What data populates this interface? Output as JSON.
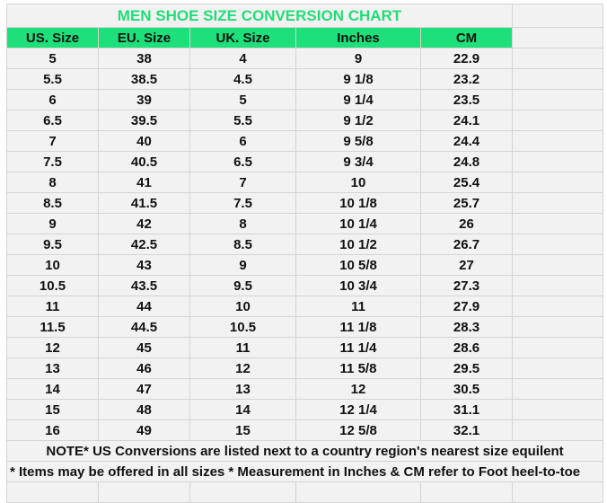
{
  "title": "MEN SHOE SIZE CONVERSION CHART",
  "colors": {
    "accent": "#1ee07a",
    "title": "#22dd77"
  },
  "headers": [
    "US. Size",
    "EU. Size",
    "UK. Size",
    "Inches",
    "CM"
  ],
  "rows": [
    [
      "5",
      "38",
      "4",
      "9",
      "22.9"
    ],
    [
      "5.5",
      "38.5",
      "4.5",
      "9 1/8",
      "23.2"
    ],
    [
      "6",
      "39",
      "5",
      "9 1/4",
      "23.5"
    ],
    [
      "6.5",
      "39.5",
      "5.5",
      "9 1/2",
      "24.1"
    ],
    [
      "7",
      "40",
      "6",
      "9 5/8",
      "24.4"
    ],
    [
      "7.5",
      "40.5",
      "6.5",
      "9 3/4",
      "24.8"
    ],
    [
      "8",
      "41",
      "7",
      "10",
      "25.4"
    ],
    [
      "8.5",
      "41.5",
      "7.5",
      "10 1/8",
      "25.7"
    ],
    [
      "9",
      "42",
      "8",
      "10 1/4",
      "26"
    ],
    [
      "9.5",
      "42.5",
      "8.5",
      "10 1/2",
      "26.7"
    ],
    [
      "10",
      "43",
      "9",
      "10 5/8",
      "27"
    ],
    [
      "10.5",
      "43.5",
      "9.5",
      "10 3/4",
      "27.3"
    ],
    [
      "11",
      "44",
      "10",
      "11",
      "27.9"
    ],
    [
      "11.5",
      "44.5",
      "10.5",
      "11 1/8",
      "28.3"
    ],
    [
      "12",
      "45",
      "11",
      "11 1/4",
      "28.6"
    ],
    [
      "13",
      "46",
      "12",
      "11 5/8",
      "29.5"
    ],
    [
      "14",
      "47",
      "13",
      "12",
      "30.5"
    ],
    [
      "15",
      "48",
      "14",
      "12 1/4",
      "31.1"
    ],
    [
      "16",
      "49",
      "15",
      "12 5/8",
      "32.1"
    ]
  ],
  "note1": "NOTE* US Conversions are listed next to a country region's nearest size equilent",
  "note2": "* Items may be offered in all sizes * Measurement in Inches & CM refer to Foot heel-to-toe"
}
